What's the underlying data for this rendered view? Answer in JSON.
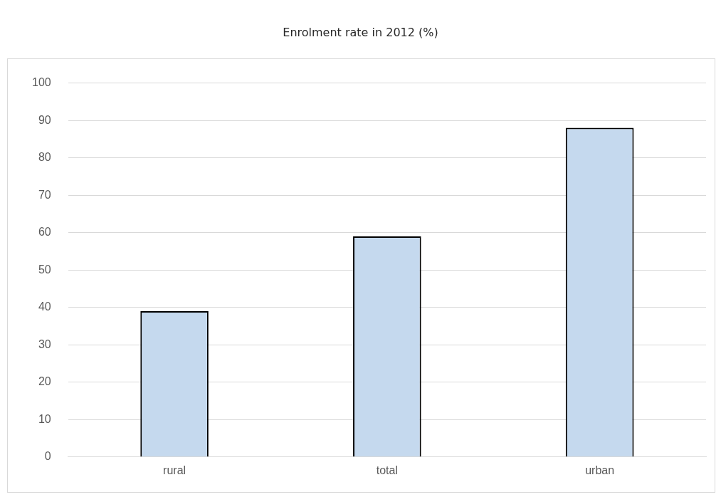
{
  "chart_data": {
    "type": "bar",
    "title": "Enrolment rate in 2012 (%)",
    "categories": [
      "rural",
      "total",
      "urban"
    ],
    "values": [
      39,
      59,
      88
    ],
    "color": "#c5d9ee",
    "ylim": [
      0,
      100
    ],
    "yticks": [
      0,
      10,
      20,
      30,
      40,
      50,
      60,
      70,
      80,
      90,
      100
    ],
    "grid": "y",
    "legend": false
  }
}
